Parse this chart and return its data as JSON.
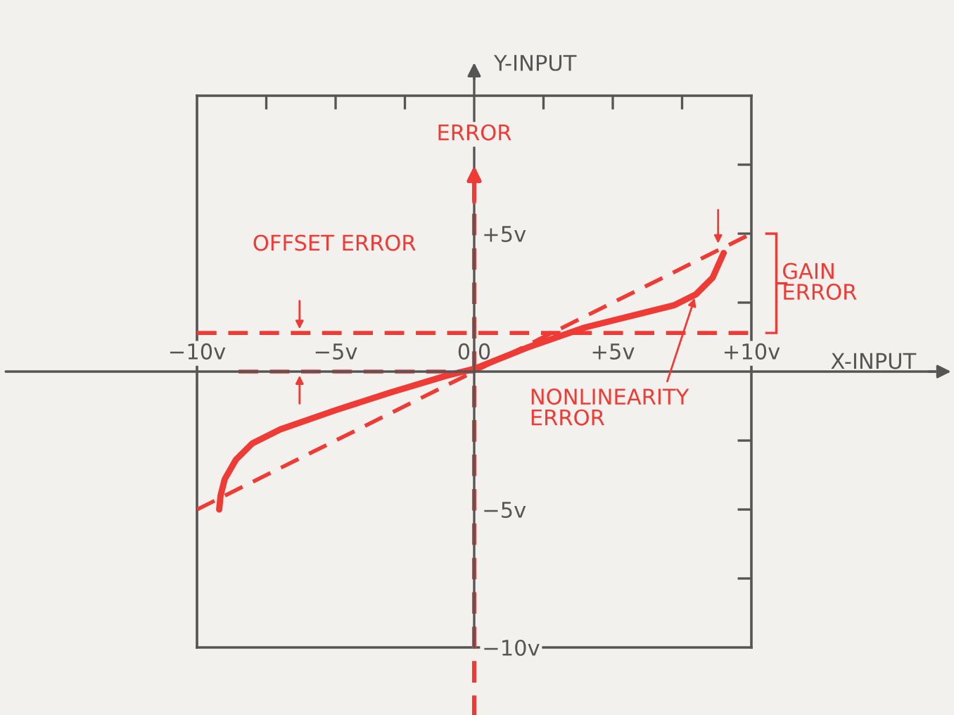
{
  "chart_data": {
    "type": "line",
    "xlabel": "X-INPUT",
    "ylabel": "Y-INPUT",
    "xlim": [
      -10,
      10
    ],
    "ylim": [
      -10,
      10
    ],
    "xticks": [
      {
        "value": -10,
        "label": "−10v"
      },
      {
        "value": -7.5,
        "label": null
      },
      {
        "value": -5,
        "label": "−5v"
      },
      {
        "value": -2.5,
        "label": null
      },
      {
        "value": 0,
        "label": "0,0"
      },
      {
        "value": 2.5,
        "label": null
      },
      {
        "value": 5,
        "label": "+5v"
      },
      {
        "value": 7.5,
        "label": null
      },
      {
        "value": 10,
        "label": "+10v"
      }
    ],
    "yticks": [
      {
        "value": -10,
        "label": "−10v"
      },
      {
        "value": -7.5,
        "label": null
      },
      {
        "value": -5,
        "label": "−5v"
      },
      {
        "value": -2.5,
        "label": null
      },
      {
        "value": 2.5,
        "label": null
      },
      {
        "value": 5,
        "label": "+5v"
      },
      {
        "value": 7.5,
        "label": null
      },
      {
        "value": 10,
        "label": null
      }
    ],
    "series": [
      {
        "color": "#ee3b36",
        "line_style": "solid",
        "x": [
          -9.2,
          -9.15,
          -9.0,
          -8.6,
          -8.0,
          -7.0,
          -5.0,
          -3.0,
          -1.0,
          0,
          2,
          4,
          6,
          7.2,
          8.0,
          8.6,
          9.0
        ],
        "values": [
          -5.0,
          -4.5,
          -3.9,
          -3.2,
          -2.6,
          -2.1,
          -1.4,
          -0.75,
          -0.15,
          0.1,
          0.9,
          1.6,
          2.1,
          2.4,
          2.8,
          3.4,
          4.3
        ]
      },
      {
        "color": "#ee3b36",
        "line_style": "dashed",
        "x": [
          -10,
          10
        ],
        "values": [
          -5,
          5
        ]
      },
      {
        "color": "#ee3b36",
        "line_style": "dashed",
        "x": [
          -8.5,
          0
        ],
        "values": [
          0,
          0
        ]
      }
    ],
    "ref_lines": [
      {
        "axis": "y",
        "value": 1.4,
        "label": "OFFSET ERROR",
        "color": "#ee3b36",
        "line_style": "dashed"
      },
      {
        "axis": "x",
        "value": 0,
        "label": "ERROR",
        "color": "#ee3b36",
        "line_style": "dashed"
      }
    ],
    "annotations": [
      "GAIN ERROR",
      {
        "text": "NONLINEARITY ERROR",
        "x": 8,
        "y": 2.8
      }
    ],
    "grid": false,
    "legend": false
  }
}
